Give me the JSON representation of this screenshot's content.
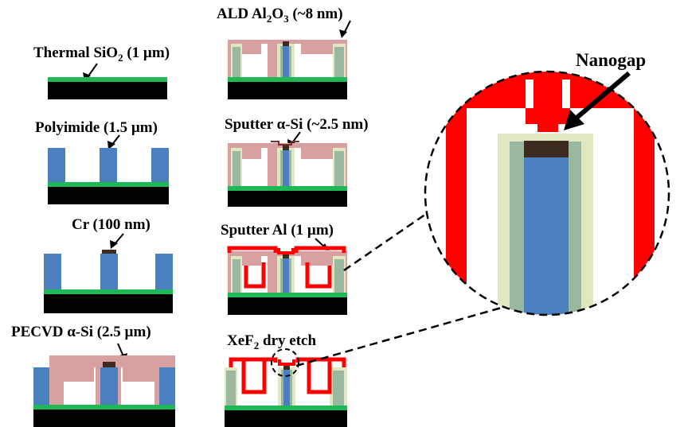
{
  "steps": [
    {
      "label": "Thermal SiO",
      "sub": "2",
      "tail": " (1 µm)"
    },
    {
      "label": "Polyimide (1.5 µm)"
    },
    {
      "label": "Cr (100 nm)"
    },
    {
      "label": "PECVD α-Si (2.5 µm)"
    },
    {
      "label": "ALD Al",
      "sub": "2",
      "mid": "O",
      "sub2": "3",
      "tail": " (~8 nm)"
    },
    {
      "label": "Sputter α-Si (~2.5 nm)"
    },
    {
      "label": "Sputter Al (1 µm)"
    },
    {
      "label": "XeF",
      "sub": "2",
      "tail": " dry etch"
    }
  ],
  "zoom": {
    "label": "Nanogap"
  },
  "colors": {
    "substrate": "#000000",
    "oxide": "#1db954",
    "polyimide": "#4a7fc0",
    "chromium": "#3d2b1f",
    "asi": "#d8a0a0",
    "al2o3": "#dfe8c0",
    "al": "#ff0000",
    "gray_green": "#9ab8a0"
  }
}
